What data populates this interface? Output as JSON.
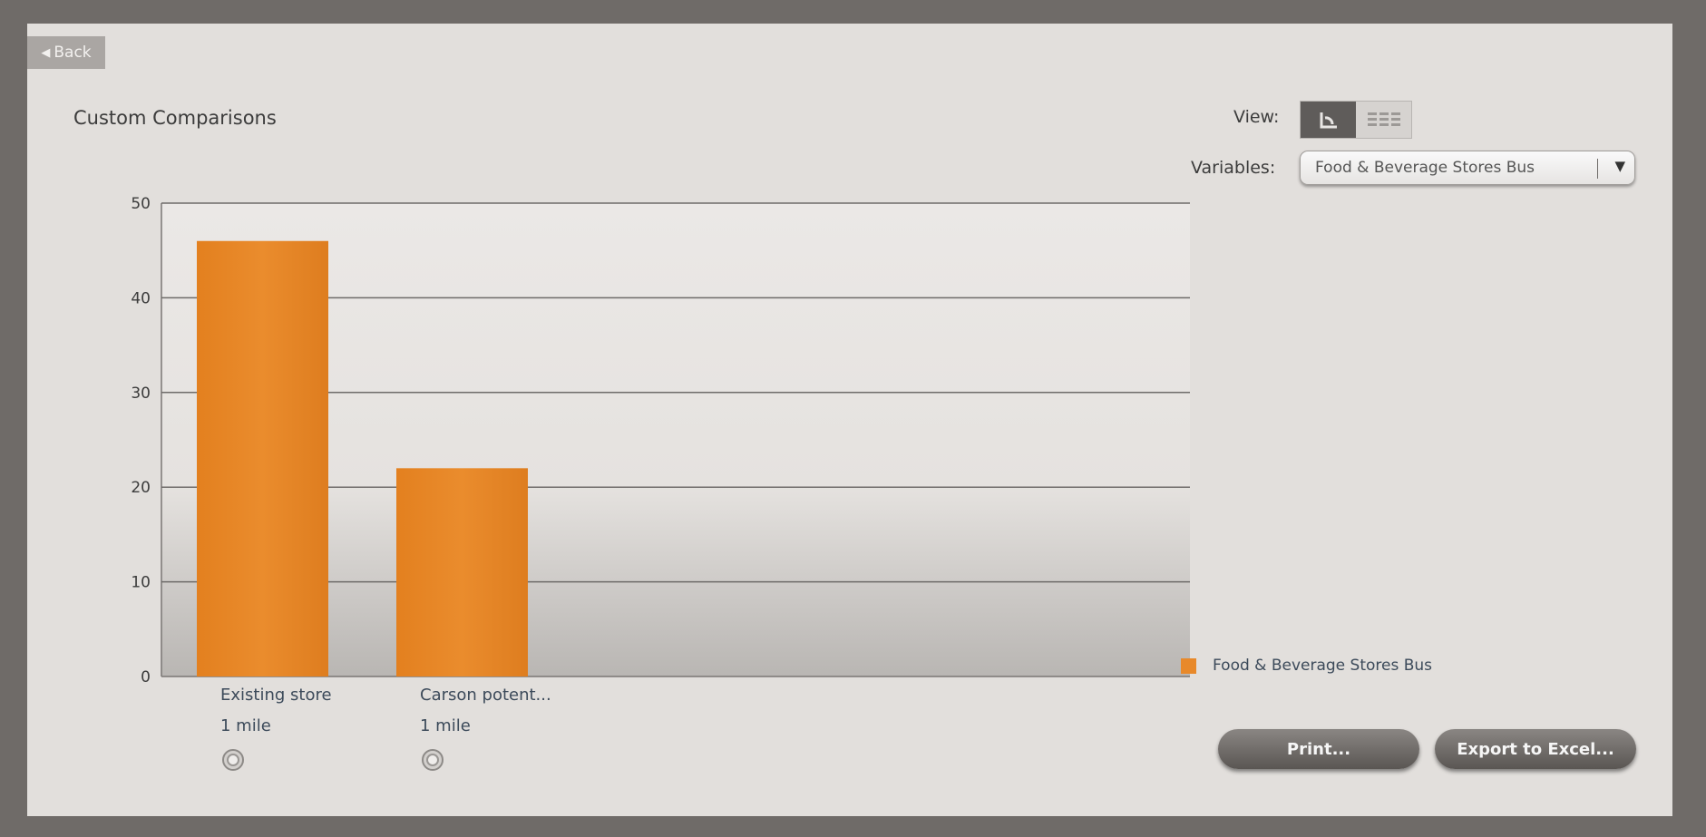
{
  "back": {
    "label": "Back",
    "icon": "back-arrow-icon"
  },
  "page_title": "Custom Comparisons",
  "view": {
    "label": "View:",
    "options": [
      "chart-view-icon",
      "table-view-icon"
    ],
    "selected": "chart-view-icon"
  },
  "variables": {
    "label": "Variables:",
    "selected": "Food & Beverage Stores Bus"
  },
  "categories_sub": [
    "1 mile",
    "1 mile"
  ],
  "legend": {
    "label": "Food & Beverage Stores Bus",
    "color": "#e8892a"
  },
  "buttons": {
    "print": "Print...",
    "export": "Export to Excel..."
  },
  "chart_data": {
    "type": "bar",
    "categories": [
      "Existing store",
      "Carson potent..."
    ],
    "series": [
      {
        "name": "Food & Beverage Stores Bus",
        "values": [
          46,
          22
        ],
        "color": "#e8892a"
      }
    ],
    "ylim": [
      0,
      50
    ],
    "yticks": [
      0,
      10,
      20,
      30,
      40,
      50
    ],
    "grid": true,
    "legend_position": "right-bottom"
  }
}
